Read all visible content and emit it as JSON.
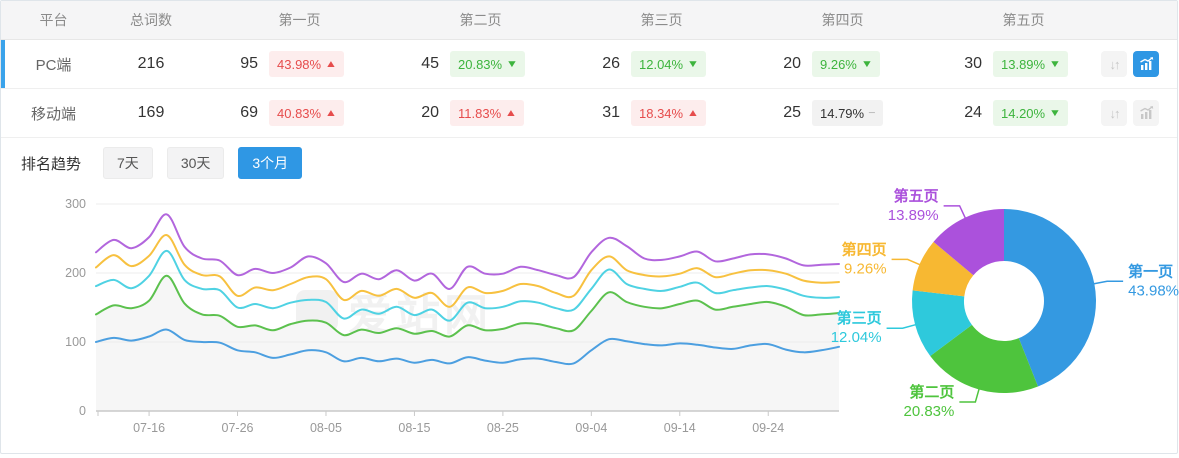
{
  "table": {
    "headers": {
      "platform": "平台",
      "total": "总词数",
      "pages": [
        "第一页",
        "第二页",
        "第三页",
        "第四页",
        "第五页"
      ]
    },
    "rows": [
      {
        "platform": "PC端",
        "total": "216",
        "selected": true,
        "chart_active": true,
        "pages": [
          {
            "count": "95",
            "pct": "43.98%",
            "dir": "up",
            "tone": "red"
          },
          {
            "count": "45",
            "pct": "20.83%",
            "dir": "down",
            "tone": "green"
          },
          {
            "count": "26",
            "pct": "12.04%",
            "dir": "down",
            "tone": "green"
          },
          {
            "count": "20",
            "pct": "9.26%",
            "dir": "down",
            "tone": "green"
          },
          {
            "count": "30",
            "pct": "13.89%",
            "dir": "down",
            "tone": "green"
          }
        ]
      },
      {
        "platform": "移动端",
        "total": "169",
        "selected": false,
        "chart_active": false,
        "pages": [
          {
            "count": "69",
            "pct": "40.83%",
            "dir": "up",
            "tone": "red"
          },
          {
            "count": "20",
            "pct": "11.83%",
            "dir": "up",
            "tone": "red"
          },
          {
            "count": "31",
            "pct": "18.34%",
            "dir": "up",
            "tone": "red"
          },
          {
            "count": "25",
            "pct": "14.79%",
            "dir": "flat",
            "tone": "gray"
          },
          {
            "count": "24",
            "pct": "14.20%",
            "dir": "down",
            "tone": "green"
          }
        ]
      }
    ]
  },
  "trend": {
    "label": "排名趋势",
    "tabs": [
      {
        "label": "7天",
        "active": false
      },
      {
        "label": "30天",
        "active": false
      },
      {
        "label": "3个月",
        "active": true
      }
    ]
  },
  "watermark": "爱站网",
  "colors": {
    "accent_blue": "#2f97e4",
    "row_accent": "#3aa3eb",
    "badge_red_text": "#e64c4c",
    "badge_green_text": "#3db43d",
    "axis_text": "#999999",
    "grid_line": "#ececec",
    "area_fill": "#f6f6f6"
  },
  "chart_data": [
    {
      "type": "line",
      "title": "排名趋势 (3个月)",
      "xlabel": "",
      "ylabel": "",
      "ylim": [
        0,
        300
      ],
      "y_ticks": [
        0,
        100,
        200,
        300
      ],
      "grid": true,
      "x_days_total": 84,
      "x_day_step": 2,
      "x_tick_days": [
        6,
        16,
        26,
        36,
        46,
        56,
        66,
        76
      ],
      "x_tick_labels": [
        "07-16",
        "07-26",
        "08-05",
        "08-15",
        "08-25",
        "09-04",
        "09-14",
        "09-24"
      ],
      "stacking": "cumulative",
      "series": [
        {
          "name": "第一页",
          "color": "#4c9fe0",
          "values": [
            100,
            106,
            102,
            108,
            118,
            103,
            100,
            99,
            88,
            85,
            77,
            82,
            88,
            85,
            72,
            77,
            72,
            76,
            70,
            74,
            69,
            78,
            73,
            70,
            75,
            76,
            71,
            69,
            88,
            104,
            101,
            97,
            95,
            98,
            96,
            92,
            90,
            95,
            97,
            89,
            85,
            88,
            93
          ]
        },
        {
          "name": "第二页",
          "color": "#5cc14e",
          "area_fill": true,
          "fill_color": "#f6f6f6",
          "values": [
            140,
            153,
            149,
            160,
            196,
            156,
            140,
            138,
            122,
            124,
            117,
            126,
            131,
            128,
            110,
            118,
            113,
            120,
            112,
            116,
            108,
            124,
            117,
            119,
            127,
            126,
            120,
            117,
            145,
            172,
            158,
            151,
            149,
            155,
            160,
            147,
            151,
            155,
            158,
            151,
            139,
            140,
            142
          ]
        },
        {
          "name": "第三页",
          "color": "#4fd2e3",
          "values": [
            181,
            190,
            178,
            196,
            232,
            190,
            177,
            175,
            150,
            155,
            149,
            157,
            161,
            158,
            134,
            147,
            141,
            151,
            139,
            147,
            131,
            157,
            149,
            151,
            159,
            157,
            149,
            147,
            177,
            205,
            184,
            177,
            174,
            180,
            186,
            171,
            175,
            179,
            181,
            176,
            167,
            164,
            165
          ]
        },
        {
          "name": "第四页",
          "color": "#f7c140",
          "values": [
            208,
            226,
            210,
            225,
            255,
            212,
            197,
            195,
            167,
            179,
            175,
            184,
            194,
            191,
            161,
            174,
            167,
            177,
            164,
            171,
            151,
            179,
            171,
            174,
            184,
            181,
            171,
            167,
            204,
            224,
            204,
            197,
            195,
            199,
            207,
            194,
            199,
            204,
            204,
            199,
            189,
            186,
            187
          ]
        },
        {
          "name": "第五页",
          "color": "#b266dd",
          "values": [
            230,
            248,
            236,
            252,
            285,
            238,
            221,
            218,
            197,
            206,
            200,
            208,
            224,
            214,
            187,
            199,
            191,
            204,
            189,
            199,
            177,
            209,
            199,
            199,
            209,
            204,
            197,
            194,
            230,
            251,
            239,
            221,
            219,
            224,
            231,
            217,
            221,
            227,
            227,
            221,
            211,
            212,
            213
          ]
        }
      ]
    },
    {
      "type": "pie",
      "title": "",
      "donut": true,
      "start_angle": "top",
      "direction": "clockwise",
      "labels_position": "outside-leader-lines",
      "slices": [
        {
          "label": "第一页",
          "value": 43.98,
          "pct": "43.98%",
          "color": "#3499e1"
        },
        {
          "label": "第二页",
          "value": 20.83,
          "pct": "20.83%",
          "color": "#4ec43d"
        },
        {
          "label": "第三页",
          "value": 12.04,
          "pct": "12.04%",
          "color": "#2ec9dc"
        },
        {
          "label": "第四页",
          "value": 9.26,
          "pct": "9.26%",
          "color": "#f7b832"
        },
        {
          "label": "第五页",
          "value": 13.89,
          "pct": "13.89%",
          "color": "#ab51dc"
        }
      ]
    }
  ]
}
